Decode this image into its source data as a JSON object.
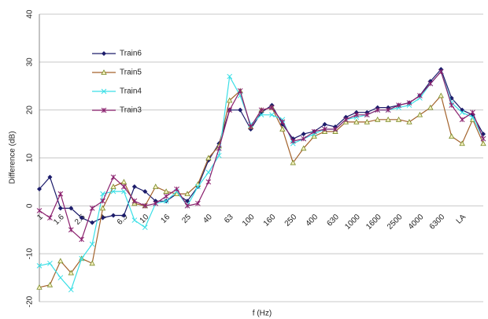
{
  "chart_data": {
    "type": "line",
    "ylabel": "Difference (dB)",
    "xlabel": "f (Hz)",
    "categories": [
      "1",
      null,
      "1.6",
      null,
      "2.5",
      null,
      "4",
      null,
      "6.3",
      null,
      "10",
      null,
      "16",
      null,
      "25",
      null,
      "40",
      null,
      "63",
      null,
      "100",
      null,
      "160",
      null,
      "250",
      null,
      "400",
      null,
      "630",
      null,
      "1000",
      null,
      "1600",
      null,
      "2500",
      null,
      "4000",
      null,
      "6300",
      null,
      "LA",
      null,
      null
    ],
    "ylim": [
      -20,
      40
    ],
    "yticks": [
      -20,
      -10,
      0,
      10,
      20,
      30,
      40
    ],
    "grid": true,
    "series": [
      {
        "name": "Train6",
        "color": "#1c1c6b",
        "values": [
          3.5,
          6,
          -0.5,
          -0.5,
          -2.5,
          -3.5,
          -2.5,
          -2,
          -2,
          4,
          3,
          1,
          1,
          2.5,
          1,
          4,
          9.5,
          13,
          20,
          20,
          16,
          19.5,
          21,
          17,
          14,
          15,
          15.5,
          17,
          16.5,
          18.5,
          19.5,
          19.5,
          20.5,
          20.5,
          21,
          21.5,
          23,
          26,
          28.5,
          22.5,
          20,
          19,
          15
        ]
      },
      {
        "name": "Train5",
        "color": "#a3622b",
        "values": [
          -17,
          -16.5,
          -11.5,
          -14,
          -11,
          -12,
          -0.5,
          4,
          5,
          0.5,
          0,
          4,
          3,
          2.5,
          2.5,
          4.5,
          10,
          12.5,
          22,
          24,
          16.5,
          20,
          20.5,
          16,
          9,
          12,
          14.5,
          15.5,
          15.5,
          17.5,
          17.5,
          17.5,
          18,
          18,
          18,
          17.5,
          19,
          20.5,
          23,
          14.5,
          13,
          18,
          13
        ]
      },
      {
        "name": "Train4",
        "color": "#3adfe6",
        "values": [
          -12.5,
          -12,
          -15,
          -17.5,
          -11,
          -8,
          2.5,
          3,
          3,
          -3,
          -4.5,
          0.5,
          1,
          3,
          0,
          4,
          7,
          10.5,
          27,
          23,
          17,
          19,
          19,
          18,
          13,
          14,
          15,
          16,
          16,
          18,
          18.5,
          19,
          20,
          20,
          20.5,
          21,
          22.5,
          25.5,
          28,
          21.5,
          19.5,
          18.5,
          14
        ]
      },
      {
        "name": "Train3",
        "color": "#8a1f6d",
        "values": [
          -1,
          -2.5,
          2.5,
          -5,
          -7,
          -0.5,
          1,
          6,
          4,
          1,
          0,
          0.5,
          2,
          3.5,
          0,
          0.5,
          5,
          12,
          20,
          24,
          16.5,
          20,
          20.5,
          17.5,
          13.5,
          14,
          15.5,
          16,
          16,
          18,
          19,
          19,
          20,
          20,
          21,
          21.5,
          23,
          25.5,
          28,
          21,
          18,
          19.5,
          14
        ]
      }
    ]
  }
}
